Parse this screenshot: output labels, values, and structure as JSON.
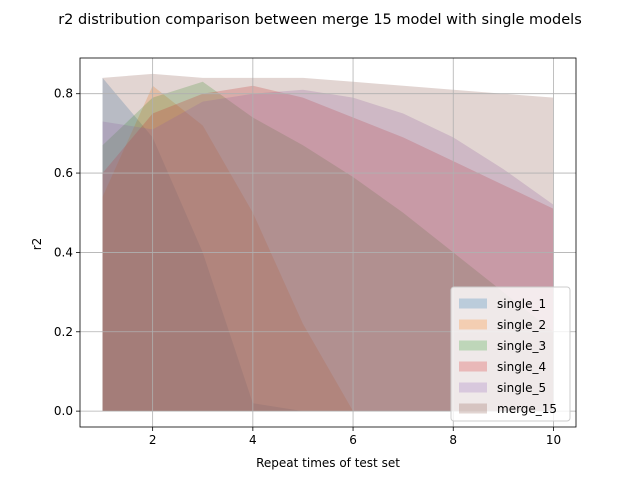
{
  "chart_data": {
    "type": "area",
    "title": "r2 distribution comparison between merge 15 model with single models",
    "xlabel": "Repeat times of test set",
    "ylabel": "r2",
    "xlim": [
      0.55,
      10.45
    ],
    "ylim": [
      -0.04,
      0.89
    ],
    "xticks": [
      2,
      4,
      6,
      8,
      10
    ],
    "yticks": [
      0.0,
      0.2,
      0.4,
      0.6,
      0.8
    ],
    "xtick_labels": [
      "2",
      "4",
      "6",
      "8",
      "10"
    ],
    "ytick_labels": [
      "0.0",
      "0.2",
      "0.4",
      "0.6",
      "0.8"
    ],
    "grid": true,
    "legend_position": "lower-right",
    "x": [
      1,
      2,
      3,
      4,
      5,
      6,
      7,
      8,
      9,
      10
    ],
    "series": [
      {
        "name": "single_1",
        "color": "#1f77b4",
        "upper": [
          0.84,
          0.69,
          0.4,
          0.02,
          0.0,
          0.0,
          0.0,
          0.0,
          0.0,
          0.0
        ],
        "lower": [
          0.0,
          0.0,
          0.0,
          0.0,
          0.0,
          0.0,
          0.0,
          0.0,
          0.0,
          0.0
        ]
      },
      {
        "name": "single_2",
        "color": "#ff7f0e",
        "upper": [
          0.54,
          0.82,
          0.72,
          0.5,
          0.22,
          0.0,
          0.0,
          0.0,
          0.0,
          0.0
        ],
        "lower": [
          0.0,
          0.0,
          0.0,
          0.0,
          0.0,
          0.0,
          0.0,
          0.0,
          0.0,
          0.0
        ]
      },
      {
        "name": "single_3",
        "color": "#2ca02c",
        "upper": [
          0.67,
          0.79,
          0.83,
          0.74,
          0.67,
          0.59,
          0.5,
          0.4,
          0.3,
          0.2
        ],
        "lower": [
          0.0,
          0.0,
          0.0,
          0.0,
          0.0,
          0.0,
          0.0,
          0.0,
          0.0,
          0.0
        ]
      },
      {
        "name": "single_4",
        "color": "#d62728",
        "upper": [
          0.6,
          0.75,
          0.8,
          0.82,
          0.79,
          0.74,
          0.69,
          0.63,
          0.57,
          0.51
        ],
        "lower": [
          0.0,
          0.0,
          0.0,
          0.0,
          0.0,
          0.0,
          0.0,
          0.0,
          0.0,
          0.0
        ]
      },
      {
        "name": "single_5",
        "color": "#9467bd",
        "upper": [
          0.73,
          0.71,
          0.78,
          0.8,
          0.81,
          0.79,
          0.75,
          0.69,
          0.61,
          0.52
        ],
        "lower": [
          0.0,
          0.0,
          0.0,
          0.0,
          0.0,
          0.0,
          0.0,
          0.0,
          0.0,
          0.0
        ]
      },
      {
        "name": "merge_15",
        "color": "#8c564b",
        "upper": [
          0.84,
          0.85,
          0.84,
          0.84,
          0.84,
          0.83,
          0.82,
          0.81,
          0.8,
          0.79
        ],
        "lower": [
          0.0,
          0.0,
          0.0,
          0.0,
          0.0,
          0.0,
          0.0,
          0.0,
          0.0,
          0.0
        ]
      }
    ]
  }
}
